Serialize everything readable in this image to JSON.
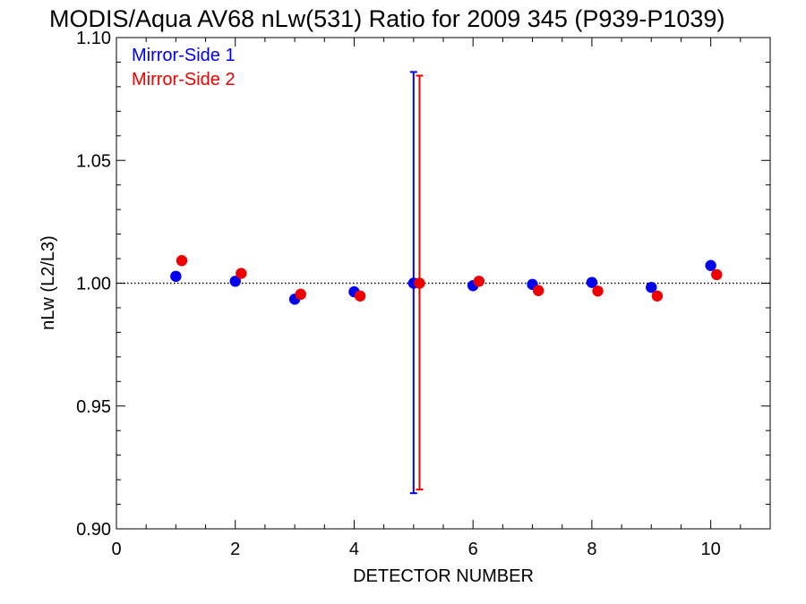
{
  "chart_data": {
    "type": "scatter",
    "title": "MODIS/Aqua AV68 nLw(531) Ratio for 2009 345 (P939-P1039)",
    "xlabel": "DETECTOR NUMBER",
    "ylabel": "nLw (L2/L3)",
    "xlim": [
      0,
      11
    ],
    "ylim": [
      0.9,
      1.1
    ],
    "x_ticks": [
      0,
      2,
      4,
      6,
      8,
      10
    ],
    "x_tick_labels": [
      "0",
      "2",
      "4",
      "6",
      "8",
      "10"
    ],
    "y_ticks": [
      0.9,
      0.95,
      1.0,
      1.05,
      1.1
    ],
    "y_tick_labels": [
      "0.90",
      "0.95",
      "1.00",
      "1.05",
      "1.10"
    ],
    "reference_line": {
      "y": 1.0,
      "style": "dotted"
    },
    "grid": false,
    "legend_position": "top-left",
    "series": [
      {
        "name": "Mirror-Side 1",
        "color": "#0000ee",
        "x": [
          1,
          2,
          3,
          4,
          5,
          6,
          7,
          8,
          9,
          10
        ],
        "y": [
          1.0028,
          1.0008,
          0.9935,
          0.9965,
          1.0,
          0.999,
          0.9995,
          1.0003,
          0.9983,
          1.0072
        ],
        "error_bars": [
          {
            "x": 5,
            "low": 0.9145,
            "high": 1.086
          }
        ]
      },
      {
        "name": "Mirror-Side 2",
        "color": "#ee0000",
        "x": [
          1.1,
          2.1,
          3.1,
          4.1,
          5.1,
          6.1,
          7.1,
          8.1,
          9.1,
          10.1
        ],
        "y": [
          1.0092,
          1.004,
          0.9955,
          0.9948,
          1.0,
          1.0008,
          0.997,
          0.9968,
          0.9948,
          1.0035
        ],
        "error_bars": [
          {
            "x": 5.1,
            "low": 0.916,
            "high": 1.0845
          }
        ]
      }
    ]
  }
}
